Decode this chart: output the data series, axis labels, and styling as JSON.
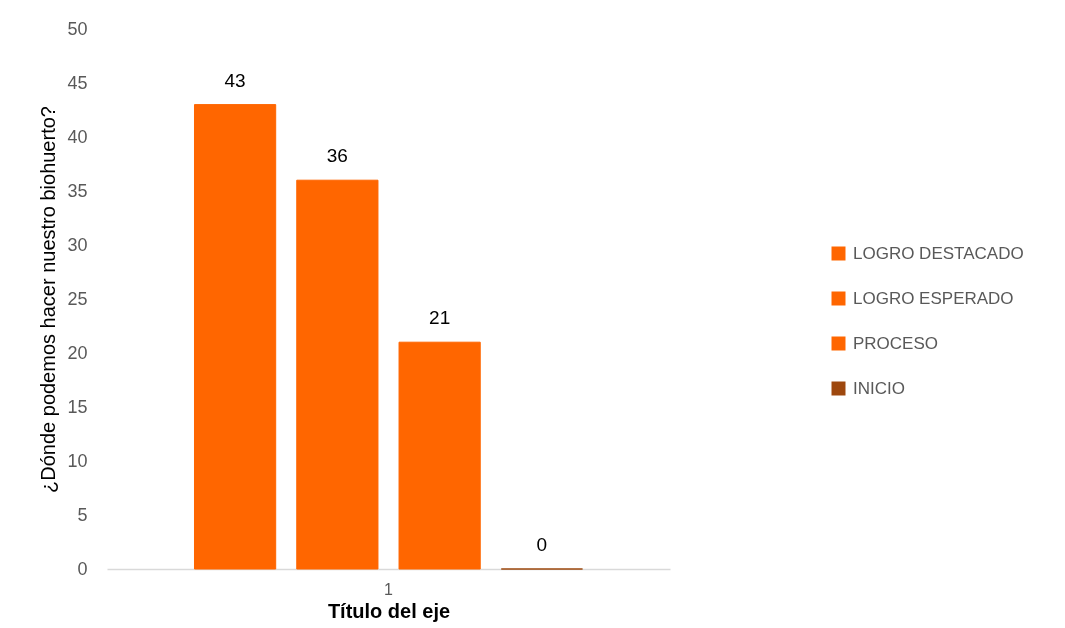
{
  "chart_data": {
    "type": "bar",
    "categories": [
      "1"
    ],
    "series": [
      {
        "name": "LOGRO DESTACADO",
        "color": "#ff6600",
        "values": [
          43
        ]
      },
      {
        "name": "LOGRO ESPERADO",
        "color": "#ff6600",
        "values": [
          36
        ]
      },
      {
        "name": "PROCESO",
        "color": "#ff6600",
        "values": [
          21
        ]
      },
      {
        "name": "INICIO",
        "color": "#9e480e",
        "values": [
          0
        ]
      }
    ],
    "xlabel": "Título del eje",
    "ylabel": "¿Dónde podemos hacer nuestro biohuerto?",
    "ylim": [
      0,
      50
    ],
    "yticks": [
      0,
      5,
      10,
      15,
      20,
      25,
      30,
      35,
      40,
      45,
      50
    ],
    "grid": false,
    "legend": "right",
    "data_labels": true
  }
}
